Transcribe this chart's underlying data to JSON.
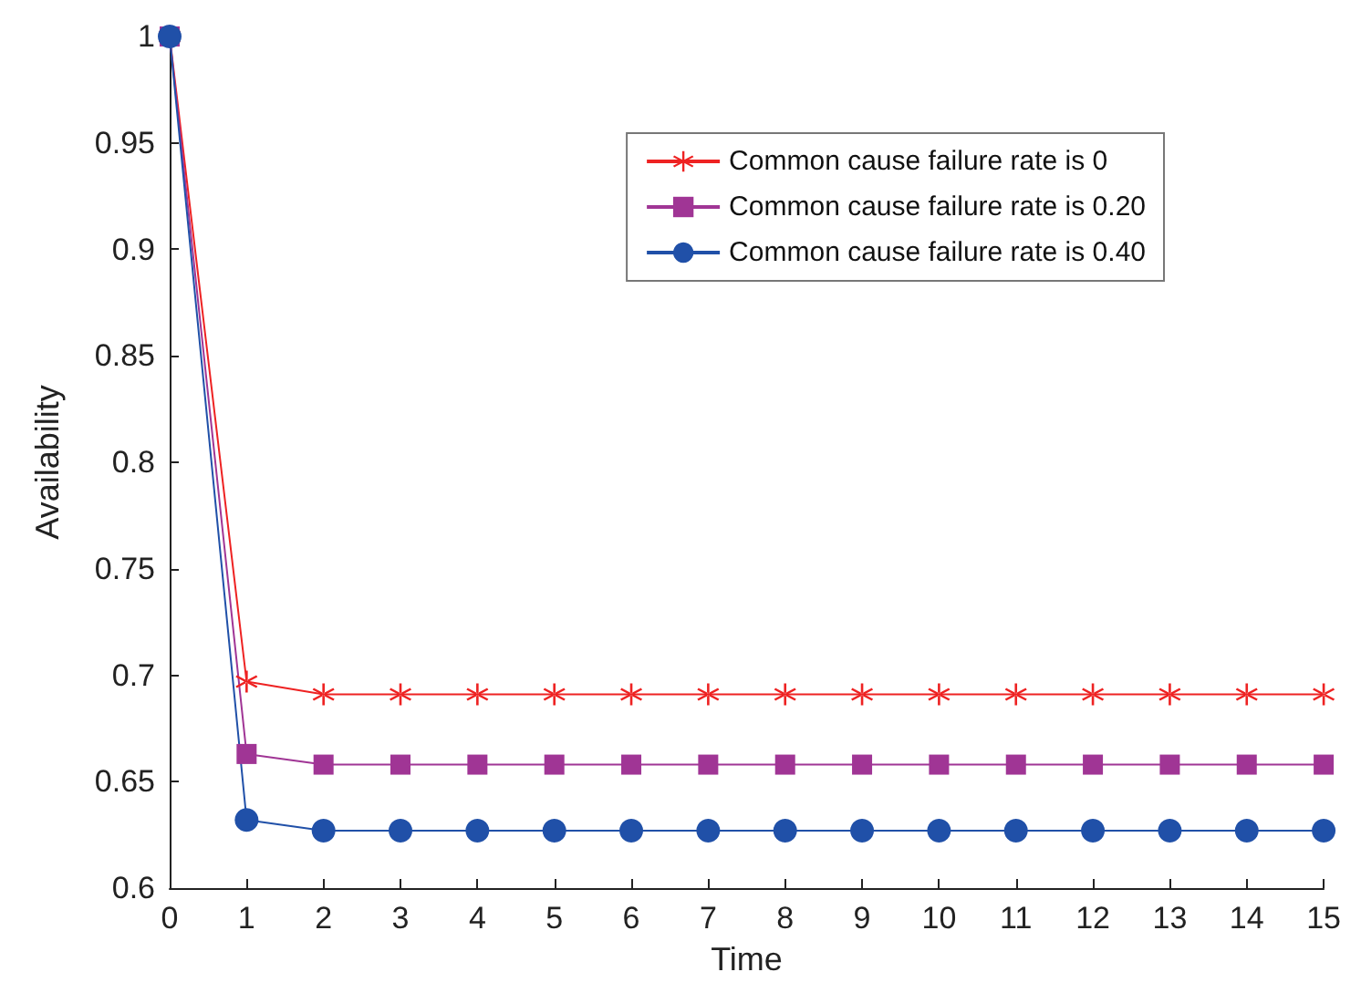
{
  "chart_data": {
    "type": "line",
    "xlabel": "Time",
    "ylabel": "Availability",
    "x": [
      0,
      1,
      2,
      3,
      4,
      5,
      6,
      7,
      8,
      9,
      10,
      11,
      12,
      13,
      14,
      15
    ],
    "series": [
      {
        "name": "Common cause failure rate is 0",
        "color": "#ee2222",
        "marker": "cross",
        "values": [
          1,
          0.697,
          0.691,
          0.691,
          0.691,
          0.691,
          0.691,
          0.691,
          0.691,
          0.691,
          0.691,
          0.691,
          0.691,
          0.691,
          0.691,
          0.691
        ]
      },
      {
        "name": "Common cause failure rate is 0.20",
        "color": "#a03595",
        "marker": "square",
        "values": [
          1,
          0.663,
          0.658,
          0.658,
          0.658,
          0.658,
          0.658,
          0.658,
          0.658,
          0.658,
          0.658,
          0.658,
          0.658,
          0.658,
          0.658,
          0.658
        ]
      },
      {
        "name": "Common cause failure rate is 0.40",
        "color": "#2050a8",
        "marker": "circle",
        "values": [
          1,
          0.632,
          0.627,
          0.627,
          0.627,
          0.627,
          0.627,
          0.627,
          0.627,
          0.627,
          0.627,
          0.627,
          0.627,
          0.627,
          0.627,
          0.627
        ]
      }
    ],
    "xlim": [
      0,
      15
    ],
    "xticks": [
      0,
      1,
      2,
      3,
      4,
      5,
      6,
      7,
      8,
      9,
      10,
      11,
      12,
      13,
      14,
      15
    ],
    "ylim": [
      0.6,
      1
    ],
    "yticks": [
      0.6,
      0.65,
      0.7,
      0.75,
      0.8,
      0.85,
      0.9,
      0.95,
      1
    ],
    "grid": false,
    "legend": "top right",
    "line_style": "solid"
  }
}
